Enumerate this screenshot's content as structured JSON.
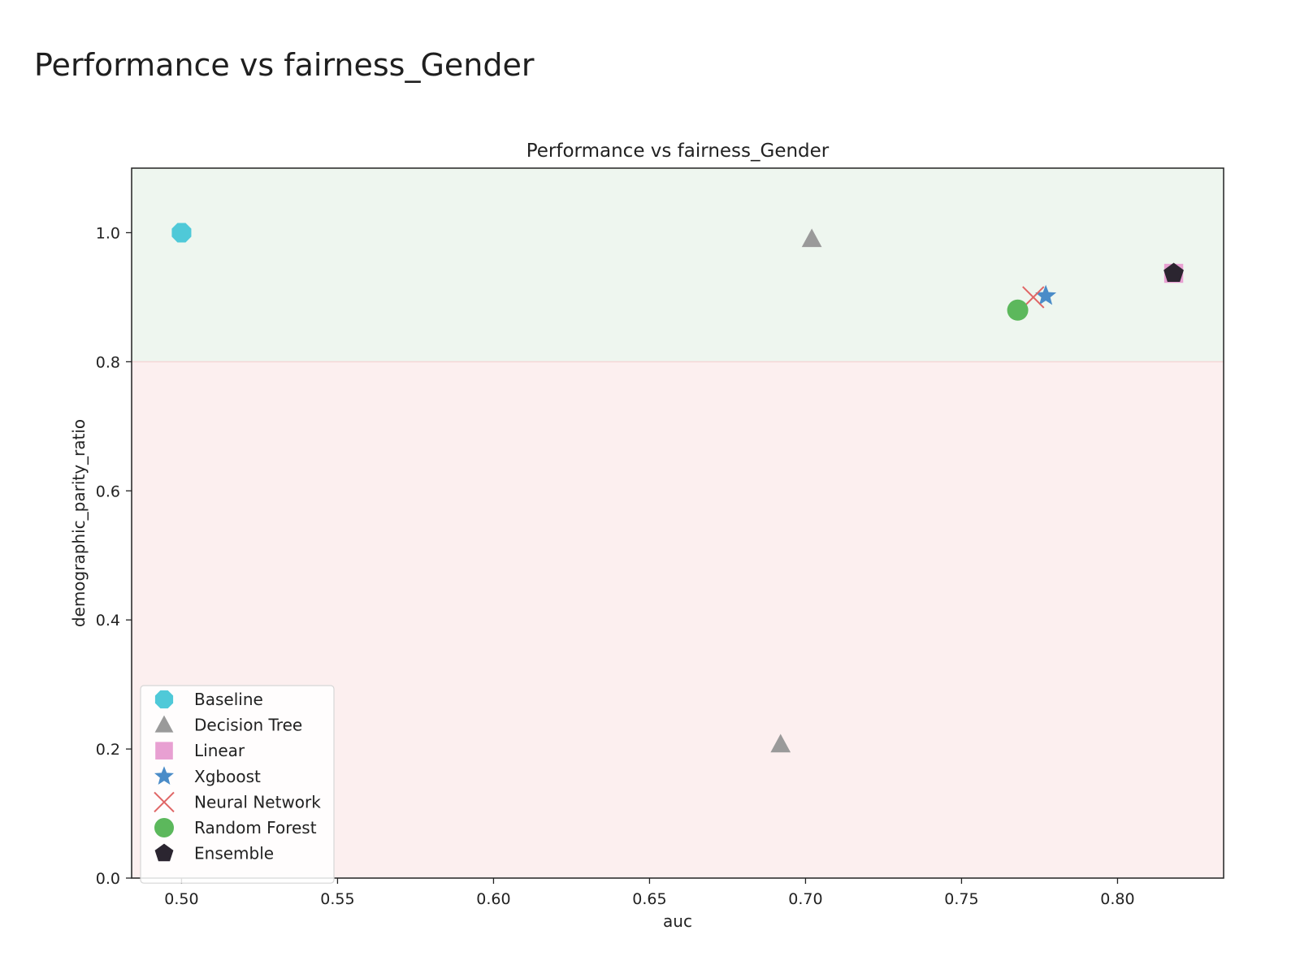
{
  "page": {
    "heading": "Performance vs fairness_Gender"
  },
  "chart_data": {
    "type": "scatter",
    "title": "Performance vs fairness_Gender",
    "xlabel": "auc",
    "ylabel": "demographic_parity_ratio",
    "xlim": [
      0.484,
      0.834
    ],
    "ylim": [
      0.0,
      1.1
    ],
    "xticks": [
      "0.50",
      "0.55",
      "0.60",
      "0.65",
      "0.70",
      "0.75",
      "0.80"
    ],
    "yticks": [
      "0.0",
      "0.2",
      "0.4",
      "0.6",
      "0.8",
      "1.0"
    ],
    "grid": false,
    "legend_position": "lower-left",
    "fairness_threshold": 0.8,
    "region_colors": {
      "fair": "#eef6ef",
      "unfair": "#fcefef",
      "boundary": "#f5d6d6"
    },
    "series": [
      {
        "name": "Baseline",
        "marker": "octagon",
        "color": "#4fc9d8",
        "points": [
          [
            0.5,
            1.0
          ]
        ]
      },
      {
        "name": "Decision Tree",
        "marker": "triangle",
        "color": "#9a9a9a",
        "points": [
          [
            0.702,
            0.99
          ],
          [
            0.692,
            0.207
          ]
        ]
      },
      {
        "name": "Linear",
        "marker": "square",
        "color": "#e8a0d2",
        "points": [
          [
            0.818,
            0.937
          ]
        ]
      },
      {
        "name": "Xgboost",
        "marker": "star",
        "color": "#4a8cc8",
        "points": [
          [
            0.777,
            0.902
          ]
        ]
      },
      {
        "name": "Neural Network",
        "marker": "x",
        "color": "#e06666",
        "points": [
          [
            0.773,
            0.9
          ]
        ]
      },
      {
        "name": "Random Forest",
        "marker": "circle",
        "color": "#5cb85c",
        "points": [
          [
            0.768,
            0.88
          ]
        ]
      },
      {
        "name": "Ensemble",
        "marker": "pentagon",
        "color": "#2b2530",
        "points": [
          [
            0.818,
            0.937
          ]
        ]
      }
    ]
  }
}
